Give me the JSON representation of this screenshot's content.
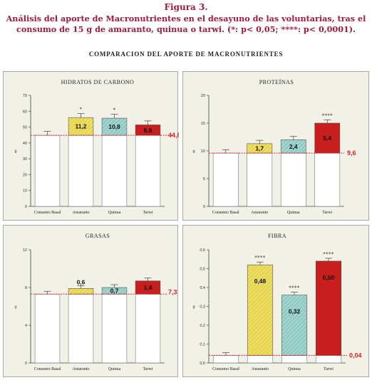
{
  "figure_label": "Figura 3.",
  "caption_line1": "Análisis del aporte de Macronutrientes en el desayuno de las voluntarias, tras el",
  "caption_line2": "consumo de 15 g de amaranto, quinua o tarwi. (*: p< 0,05; ****: p< 0,0001).",
  "main_title": "COMPARACION DEL APORTE DE MACRONUTRIENTES",
  "colors": {
    "basal": "#ffffff",
    "amaranto": "#e6d54a",
    "quinua": "#8ec9c3",
    "tarwi": "#c81e1e",
    "reference_line": "#d42424",
    "panel_bg": "#f1f1e7"
  },
  "chart_data": [
    {
      "type": "bar",
      "title": "HIDRATOS DE CARBONO",
      "ylabel": "g",
      "categories": [
        "Consumo Basal",
        "Amaranto",
        "Quinua",
        "Tarwi"
      ],
      "ylim": [
        0,
        70
      ],
      "yticks": [
        "0",
        "10",
        "20",
        "30",
        "40",
        "50",
        "60",
        "70"
      ],
      "baseline": 44.8,
      "baseline_label": "44,8",
      "values": [
        44.8,
        56.0,
        55.6,
        51.4
      ],
      "errors": [
        2.5,
        2.5,
        2.5,
        2.5
      ],
      "increment_labels": [
        "",
        "11,2",
        "10,8",
        "6,6"
      ],
      "significance": [
        "",
        "*",
        "*",
        ""
      ],
      "grid": false
    },
    {
      "type": "bar",
      "title": "PROTEÍNAS",
      "ylabel": "g",
      "categories": [
        "Consumo Basal",
        "Amaranto",
        "Quinua",
        "Tarwi"
      ],
      "ylim": [
        0,
        20
      ],
      "yticks": [
        "0",
        "5",
        "10",
        "15",
        "20"
      ],
      "baseline": 9.6,
      "baseline_label": "9,6",
      "values": [
        9.6,
        11.3,
        12.0,
        15.0
      ],
      "errors": [
        0.6,
        0.6,
        0.6,
        0.6
      ],
      "increment_labels": [
        "",
        "1,7",
        "2,4",
        "5,4"
      ],
      "significance": [
        "",
        "",
        "",
        "****"
      ],
      "grid": false
    },
    {
      "type": "bar",
      "title": "GRASAS",
      "ylabel": "g",
      "categories": [
        "Consumo Basal",
        "Amaranto",
        "Quinua",
        "Tarwi"
      ],
      "ylim": [
        0,
        12
      ],
      "yticks": [
        "0",
        "4",
        "8",
        "12"
      ],
      "baseline": 7.3,
      "baseline_label": "7,3",
      "values": [
        7.3,
        7.9,
        8.0,
        8.7
      ],
      "errors": [
        0.3,
        0.3,
        0.3,
        0.3
      ],
      "increment_labels": [
        "",
        "0,6",
        "0,7",
        "1,4"
      ],
      "significance": [
        "",
        "",
        "",
        ""
      ],
      "grid": false
    },
    {
      "type": "bar",
      "title": "FIBRA",
      "ylabel": "g",
      "categories": [
        "Consumo Basal",
        "Amaranto",
        "Quinua",
        "Tarwi"
      ],
      "ylim": [
        0,
        0.6
      ],
      "yticks": [
        "0,0",
        "0,1",
        "0,2",
        "0,3",
        "0,4",
        "0,5",
        "0,6"
      ],
      "baseline": 0.04,
      "baseline_label": "0,04",
      "values": [
        0.04,
        0.52,
        0.36,
        0.54
      ],
      "errors": [
        0.015,
        0.015,
        0.015,
        0.015
      ],
      "increment_labels": [
        "",
        "0,48",
        "0,32",
        "0,50"
      ],
      "significance": [
        "",
        "****",
        "****",
        "****"
      ],
      "grid": false
    }
  ]
}
